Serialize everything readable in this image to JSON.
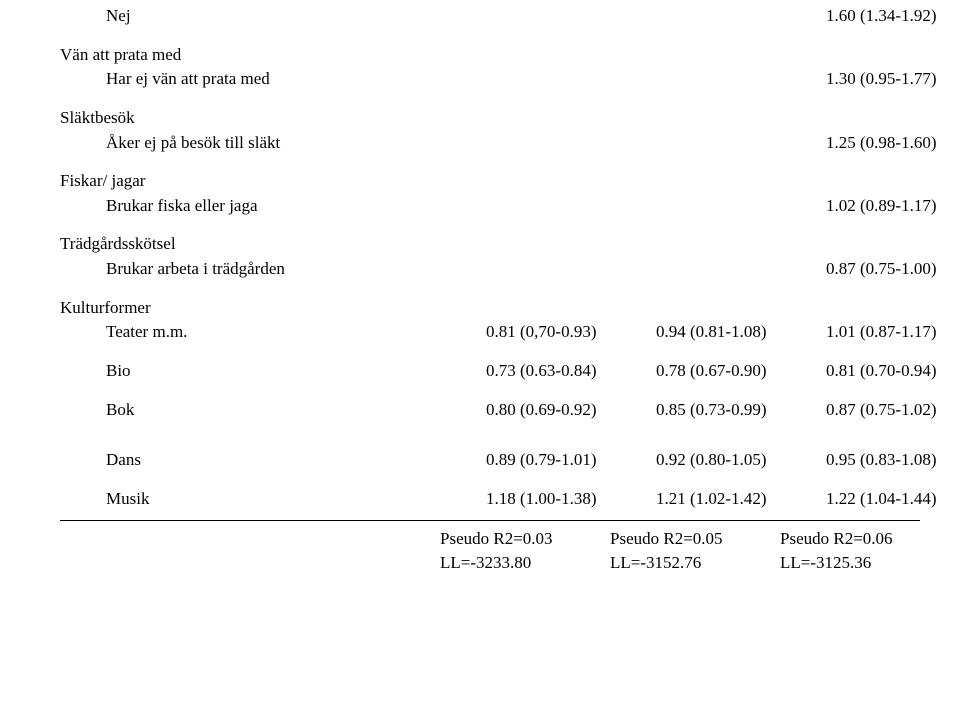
{
  "rows": {
    "nej": {
      "label": "Nej",
      "v3": "1.60 (1.34-1.92)"
    },
    "van_head": {
      "label": "Vän att prata med"
    },
    "van_sub": {
      "label": "Har ej vän att prata med",
      "v3": "1.30 (0.95-1.77)"
    },
    "slakt_head": {
      "label": "Släktbesök"
    },
    "slakt_sub": {
      "label": "Åker ej på besök till släkt",
      "v3": "1.25 (0.98-1.60)"
    },
    "fisk_head": {
      "label": "Fiskar/ jagar"
    },
    "fisk_sub": {
      "label": "Brukar fiska eller jaga",
      "v3": "1.02 (0.89-1.17)"
    },
    "trad_head": {
      "label": "Trädgårdsskötsel"
    },
    "trad_sub": {
      "label": "Brukar arbeta i trädgården",
      "v3": "0.87 (0.75-1.00)"
    },
    "kultur_head": {
      "label": "Kulturformer"
    },
    "teater": {
      "label": "Teater m.m.",
      "v1": "0.81 (0,70-0.93)",
      "v2": "0.94 (0.81-1.08)",
      "v3": "1.01 (0.87-1.17)"
    },
    "bio": {
      "label": "Bio",
      "v1": "0.73 (0.63-0.84)",
      "v2": "0.78 (0.67-0.90)",
      "v3": "0.81 (0.70-0.94)"
    },
    "bok": {
      "label": "Bok",
      "v1": "0.80 (0.69-0.92)",
      "v2": "0.85 (0.73-0.99)",
      "v3": "0.87 (0.75-1.02)"
    },
    "dans": {
      "label": "Dans",
      "v1": "0.89 (0.79-1.01)",
      "v2": "0.92 (0.80-1.05)",
      "v3": "0.95 (0.83-1.08)"
    },
    "musik": {
      "label": "Musik",
      "v1": "1.18 (1.00-1.38)",
      "v2": "1.21 (1.02-1.42)",
      "v3": "1.22 (1.04-1.44)"
    }
  },
  "footer": {
    "r2": {
      "v1": "Pseudo R2=0.03",
      "v2": "Pseudo R2=0.05",
      "v3": "Pseudo R2=0.06"
    },
    "ll": {
      "v1": "LL=-3233.80",
      "v2": "LL=-3152.76",
      "v3": "LL=-3125.36"
    }
  }
}
